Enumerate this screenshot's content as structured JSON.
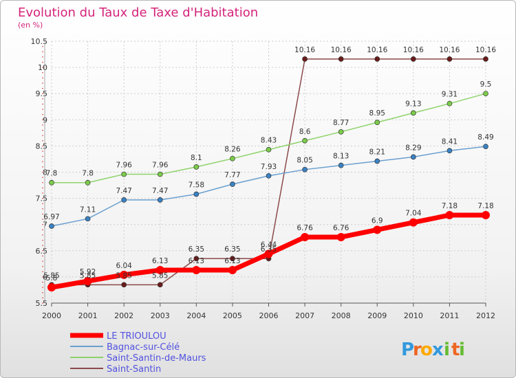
{
  "chart_data": {
    "type": "line",
    "title": "Evolution du Taux de Taxe d'Habitation",
    "subtitle": "(en %)",
    "x": [
      "2000",
      "2001",
      "2002",
      "2003",
      "2004",
      "2005",
      "2006",
      "2007",
      "2008",
      "2009",
      "2010",
      "2011",
      "2012"
    ],
    "ylim": [
      5.5,
      10.5
    ],
    "yticks": [
      "5.5",
      "6",
      "6.5",
      "7",
      "7.5",
      "8",
      "8.5",
      "9",
      "9.5",
      "10",
      "10.5"
    ],
    "grid": true,
    "legend_position": "bottom-left",
    "series": [
      {
        "name": "LE TRIOULOU",
        "color": "#ff0000",
        "values": [
          5.8,
          5.92,
          6.04,
          6.13,
          6.13,
          6.13,
          6.44,
          6.76,
          6.76,
          6.9,
          7.04,
          7.18,
          7.18
        ],
        "labels": [
          "5.8",
          "5.92",
          "6.04",
          "6.13",
          "6.13",
          "6.13",
          "6.44",
          "6.76",
          "6.76",
          "6.9",
          "7.04",
          "7.18",
          "7.18"
        ]
      },
      {
        "name": "Bagnac-sur-Célé",
        "color": "#6a9fcf",
        "values": [
          6.97,
          7.11,
          7.47,
          7.47,
          7.58,
          7.77,
          7.93,
          8.05,
          8.13,
          8.21,
          8.29,
          8.41,
          8.49
        ],
        "labels": [
          "6.97",
          "7.11",
          "7.47",
          "7.47",
          "7.58",
          "7.77",
          "7.93",
          "8.05",
          "8.13",
          "8.21",
          "8.29",
          "8.41",
          "8.49"
        ]
      },
      {
        "name": "Saint-Santin-de-Maurs",
        "color": "#8ed36a",
        "values": [
          7.8,
          7.8,
          7.96,
          7.96,
          8.1,
          8.26,
          8.43,
          8.6,
          8.77,
          8.95,
          9.13,
          9.31,
          9.5
        ],
        "labels": [
          "7.8",
          "7.8",
          "7.96",
          "7.96",
          "8.1",
          "8.26",
          "8.43",
          "8.6",
          "8.77",
          "8.95",
          "9.13",
          "9.31",
          "9.5"
        ]
      },
      {
        "name": "Saint-Santin",
        "color": "#8b4a4a",
        "values": [
          5.85,
          5.85,
          5.85,
          5.85,
          6.35,
          6.35,
          6.35,
          10.16,
          10.16,
          10.16,
          10.16,
          10.16,
          10.16
        ],
        "labels": [
          "5.85",
          "5.85",
          "5.85",
          "5.85",
          "6.35",
          "6.35",
          "6.35",
          "10.16",
          "10.16",
          "10.16",
          "10.16",
          "10.16",
          "10.16"
        ]
      }
    ]
  },
  "brand": {
    "letters": [
      "P",
      "r",
      "o",
      "x",
      "i",
      "t",
      "i"
    ],
    "colors": [
      "#3399dd",
      "#ee6622",
      "#ffaa00",
      "#3399dd",
      "#66bb33",
      "#ee6622",
      "#66bb33"
    ]
  }
}
